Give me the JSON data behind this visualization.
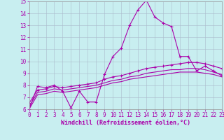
{
  "title": "",
  "xlabel": "Windchill (Refroidissement éolien,°C)",
  "ylabel": "",
  "background_color": "#c8eef0",
  "grid_color": "#aabbcc",
  "line_color": "#aa00aa",
  "xmin": 0,
  "xmax": 23,
  "ymin": 6,
  "ymax": 15,
  "x_ticks": [
    0,
    1,
    2,
    3,
    4,
    5,
    6,
    7,
    8,
    9,
    10,
    11,
    12,
    13,
    14,
    15,
    16,
    17,
    18,
    19,
    20,
    21,
    22,
    23
  ],
  "y_ticks": [
    6,
    7,
    8,
    9,
    10,
    11,
    12,
    13,
    14,
    15
  ],
  "series1_x": [
    0,
    1,
    2,
    3,
    4,
    5,
    6,
    7,
    8,
    9,
    10,
    11,
    12,
    13,
    14,
    15,
    16,
    17,
    18,
    19,
    20,
    21,
    22,
    23
  ],
  "series1_y": [
    6.0,
    7.9,
    7.8,
    8.0,
    7.5,
    6.1,
    7.5,
    6.6,
    6.6,
    8.9,
    10.4,
    11.1,
    13.0,
    14.3,
    15.1,
    13.7,
    13.2,
    12.9,
    10.4,
    10.4,
    9.2,
    9.6,
    9.2,
    8.8
  ],
  "series2_x": [
    0,
    1,
    2,
    3,
    4,
    5,
    6,
    7,
    8,
    9,
    10,
    11,
    12,
    13,
    14,
    15,
    16,
    17,
    18,
    19,
    20,
    21,
    22,
    23
  ],
  "series2_y": [
    6.5,
    7.6,
    7.7,
    7.9,
    7.8,
    7.9,
    8.0,
    8.1,
    8.2,
    8.5,
    8.7,
    8.8,
    9.0,
    9.2,
    9.4,
    9.5,
    9.6,
    9.7,
    9.8,
    9.9,
    9.9,
    9.8,
    9.6,
    9.4
  ],
  "series3_x": [
    0,
    1,
    2,
    3,
    4,
    5,
    6,
    7,
    8,
    9,
    10,
    11,
    12,
    13,
    14,
    15,
    16,
    17,
    18,
    19,
    20,
    21,
    22,
    23
  ],
  "series3_y": [
    6.2,
    7.4,
    7.5,
    7.7,
    7.6,
    7.7,
    7.8,
    7.9,
    8.0,
    8.2,
    8.4,
    8.5,
    8.7,
    8.8,
    9.0,
    9.1,
    9.2,
    9.3,
    9.3,
    9.4,
    9.4,
    9.3,
    9.1,
    8.9
  ],
  "series4_x": [
    0,
    1,
    2,
    3,
    4,
    5,
    6,
    7,
    8,
    9,
    10,
    11,
    12,
    13,
    14,
    15,
    16,
    17,
    18,
    19,
    20,
    21,
    22,
    23
  ],
  "series4_y": [
    6.0,
    7.2,
    7.3,
    7.5,
    7.4,
    7.5,
    7.6,
    7.7,
    7.8,
    8.0,
    8.2,
    8.3,
    8.5,
    8.6,
    8.7,
    8.8,
    8.9,
    9.0,
    9.1,
    9.1,
    9.1,
    9.0,
    8.9,
    8.7
  ]
}
